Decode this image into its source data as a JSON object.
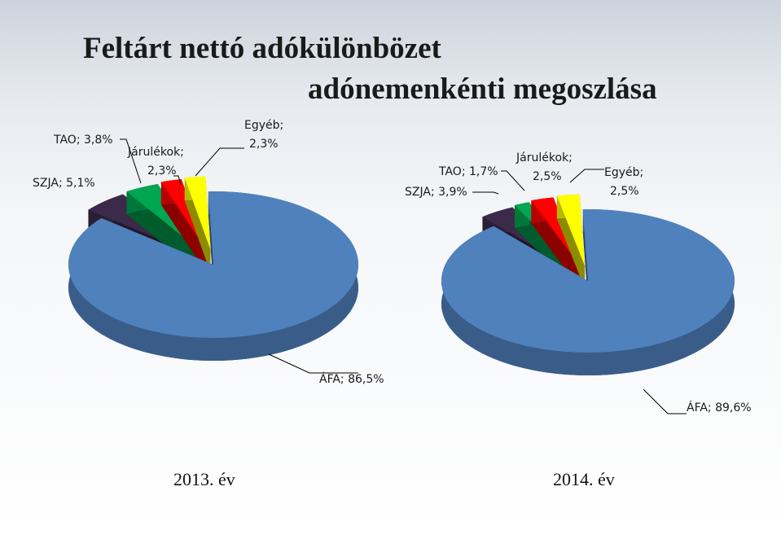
{
  "title_line1": "Feltárt nettó adókülönbözet",
  "title_line2": "adónemenkénti megoszlása",
  "chart_data": [
    {
      "type": "pie",
      "year_label": "2013. év",
      "slices": [
        {
          "name": "ÁFA",
          "value": 86.5,
          "label": "ÁFA; 86,5%",
          "color": "#4f81bd"
        },
        {
          "name": "SZJA",
          "value": 5.1,
          "label": "SZJA; 5,1%",
          "color": "#3b2a4a"
        },
        {
          "name": "TAO",
          "value": 3.8,
          "label": "TAO; 3,8%",
          "color": "#00a651"
        },
        {
          "name": "Járulékok",
          "value": 2.3,
          "label_line1": "Járulékok;",
          "label_line2": "2,3%",
          "color": "#ff0000"
        },
        {
          "name": "Egyéb",
          "value": 2.3,
          "label_line1": "Egyéb;",
          "label_line2": "2,3%",
          "color": "#ffff00"
        }
      ]
    },
    {
      "type": "pie",
      "year_label": "2014. év",
      "slices": [
        {
          "name": "ÁFA",
          "value": 89.6,
          "label": "ÁFA; 89,6%",
          "color": "#4f81bd"
        },
        {
          "name": "SZJA",
          "value": 3.9,
          "label": "SZJA; 3,9%",
          "color": "#3b2a4a"
        },
        {
          "name": "TAO",
          "value": 1.7,
          "label": "TAO; 1,7%",
          "color": "#00a651"
        },
        {
          "name": "Járulékok",
          "value": 2.5,
          "label_line1": "Járulékok;",
          "label_line2": "2,5%",
          "color": "#ff0000"
        },
        {
          "name": "Egyéb",
          "value": 2.5,
          "label_line1": "Egyéb;",
          "label_line2": "2,5%",
          "color": "#ffff00"
        }
      ]
    }
  ]
}
